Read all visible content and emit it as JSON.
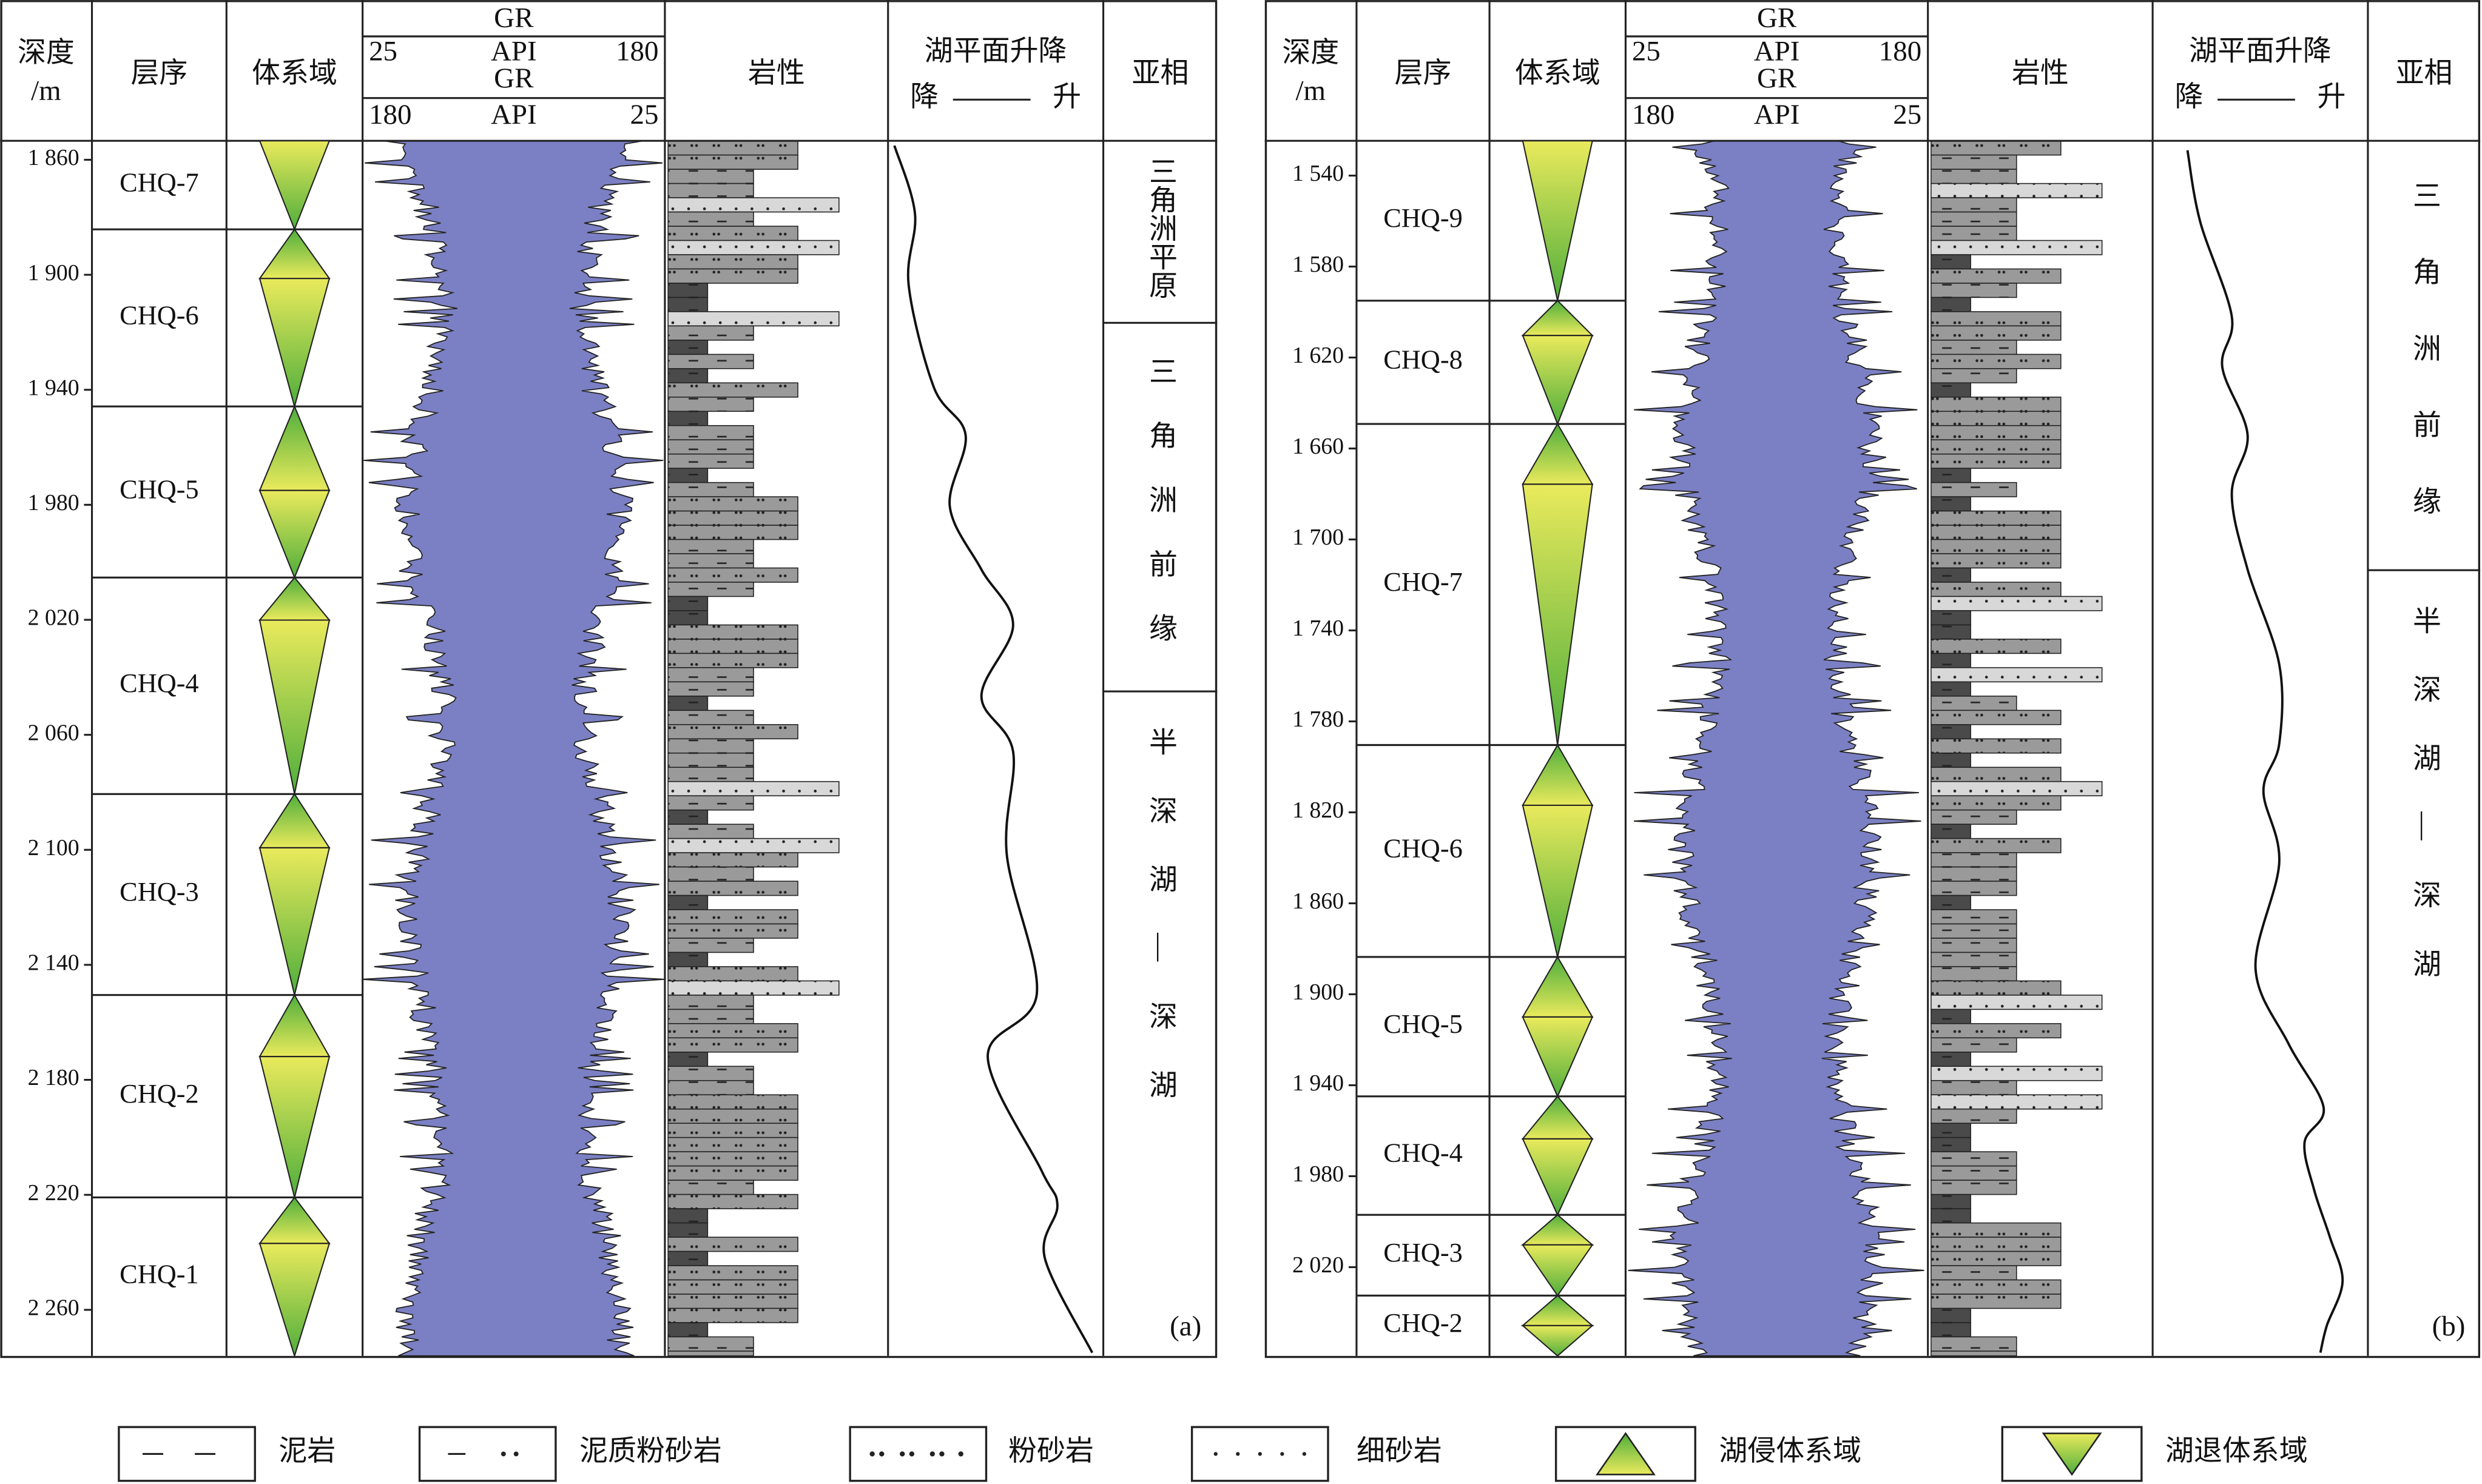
{
  "headers": {
    "depth": "深度",
    "depth_unit": "/m",
    "sequence": "层序",
    "systems_tract": "体系域",
    "gr_top": "GR",
    "gr_scale_top": [
      "25",
      "API",
      "180"
    ],
    "gr_bottom": "GR",
    "gr_scale_bottom": [
      "180",
      "API",
      "25"
    ],
    "lithology": "岩性",
    "lake_level": "湖平面升降",
    "lake_fall": "降",
    "lake_rise": "升",
    "subfacies": "亚相"
  },
  "panels": [
    {
      "label": "(a)",
      "ylim": [
        1853.4,
        2276.0
      ],
      "depth_ticks": [
        {
          "value": 1860,
          "label": "1 860"
        },
        {
          "value": 1900,
          "label": "1 900"
        },
        {
          "value": 1940,
          "label": "1 940"
        },
        {
          "value": 1980,
          "label": "1 980"
        },
        {
          "value": 2020,
          "label": "2 020"
        },
        {
          "value": 2060,
          "label": "2 060"
        },
        {
          "value": 2100,
          "label": "2 100"
        },
        {
          "value": 2140,
          "label": "2 140"
        },
        {
          "value": 2180,
          "label": "2 180"
        },
        {
          "value": 2220,
          "label": "2 220"
        },
        {
          "value": 2260,
          "label": "2 260"
        }
      ],
      "sequences": [
        {
          "name": "CHQ-7",
          "top": 1853.4,
          "mfs": 1853.4,
          "bottom": 1884.2
        },
        {
          "name": "CHQ-6",
          "top": 1884.2,
          "mfs": 1901.3,
          "bottom": 1945.8
        },
        {
          "name": "CHQ-5",
          "top": 1945.8,
          "mfs": 1975.0,
          "bottom": 2005.3
        },
        {
          "name": "CHQ-4",
          "top": 2005.3,
          "mfs": 2020.1,
          "bottom": 2080.6
        },
        {
          "name": "CHQ-3",
          "top": 2080.6,
          "mfs": 2099.3,
          "bottom": 2150.5
        },
        {
          "name": "CHQ-2",
          "top": 2150.5,
          "mfs": 2171.9,
          "bottom": 2220.9
        },
        {
          "name": "CHQ-1",
          "top": 2220.9,
          "mfs": 2236.9,
          "bottom": 2276.0
        }
      ],
      "subfacies": [
        {
          "name": "三角洲平原",
          "top": 1853.4,
          "bottom": 1916.7
        },
        {
          "name": "三角洲前缘",
          "top": 1916.7,
          "bottom": 2044.9
        },
        {
          "name": "半深湖—深湖",
          "top": 2044.9,
          "bottom": 2276.0
        }
      ]
    },
    {
      "label": "(b)",
      "ylim": [
        1524.7,
        2059.0
      ],
      "depth_ticks": [
        {
          "value": 1540,
          "label": "1 540"
        },
        {
          "value": 1580,
          "label": "1 580"
        },
        {
          "value": 1620,
          "label": "1 620"
        },
        {
          "value": 1660,
          "label": "1 660"
        },
        {
          "value": 1700,
          "label": "1 700"
        },
        {
          "value": 1740,
          "label": "1 740"
        },
        {
          "value": 1780,
          "label": "1 780"
        },
        {
          "value": 1820,
          "label": "1 820"
        },
        {
          "value": 1860,
          "label": "1 860"
        },
        {
          "value": 1900,
          "label": "1 900"
        },
        {
          "value": 1940,
          "label": "1 940"
        },
        {
          "value": 1980,
          "label": "1 980"
        },
        {
          "value": 2020,
          "label": "2 020"
        }
      ],
      "sequences": [
        {
          "name": "CHQ-9",
          "top": 1524.7,
          "mfs": 1524.7,
          "bottom": 1595.0
        },
        {
          "name": "CHQ-8",
          "top": 1595.0,
          "mfs": 1610.3,
          "bottom": 1649.2
        },
        {
          "name": "CHQ-7",
          "top": 1649.2,
          "mfs": 1675.7,
          "bottom": 1790.4
        },
        {
          "name": "CHQ-6",
          "top": 1790.4,
          "mfs": 1816.9,
          "bottom": 1883.6
        },
        {
          "name": "CHQ-5",
          "top": 1883.6,
          "mfs": 1910.0,
          "bottom": 1944.9
        },
        {
          "name": "CHQ-4",
          "top": 1944.9,
          "mfs": 1963.6,
          "bottom": 1997.0
        },
        {
          "name": "CHQ-3",
          "top": 1997.0,
          "mfs": 2010.2,
          "bottom": 2032.5
        },
        {
          "name": "CHQ-2",
          "top": 2032.5,
          "mfs": 2045.7,
          "bottom": 2059.0
        }
      ],
      "subfacies": [
        {
          "name": "三角洲前缘",
          "top": 1524.7,
          "bottom": 1713.5
        },
        {
          "name": "半深湖—深湖",
          "top": 1713.5,
          "bottom": 2059.0
        }
      ]
    }
  ],
  "legend": [
    "泥岩",
    "泥质粉砂岩",
    "粉砂岩",
    "细砂岩",
    "湖侵体系域",
    "湖退体系域"
  ]
}
